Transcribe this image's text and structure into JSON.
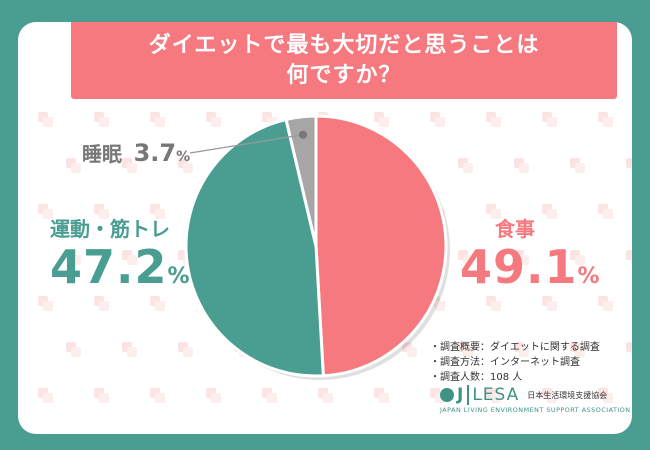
{
  "title": {
    "line1": "ダイエットで最も大切だと思うことは",
    "line2": "何ですか？"
  },
  "colors": {
    "background": "#4a9e91",
    "accent_pink": "#f5797f",
    "accent_teal": "#4a9e91",
    "gray": "#a6a6a6"
  },
  "chart_data": {
    "type": "pie",
    "slices": [
      {
        "label": "食事",
        "value": 49.1,
        "color": "#f5797f"
      },
      {
        "label": "運動・筋トレ",
        "value": 47.2,
        "color": "#4a9e91"
      },
      {
        "label": "睡眠",
        "value": 3.7,
        "color": "#a6a6a6"
      }
    ],
    "labels": {
      "sleep": {
        "name": "睡眠",
        "number": "3.7",
        "unit": "%"
      },
      "exercise": {
        "name": "運動・筋トレ",
        "number": "47.2",
        "unit": "%"
      },
      "food": {
        "name": "食事",
        "number": "49.1",
        "unit": "%"
      }
    }
  },
  "notes": [
    "・調査概要：ダイエットに関する調査",
    "・調査方法：インターネット調査",
    "・調査人数：108 人"
  ],
  "logo": {
    "j": "J",
    "lesa": "LESA",
    "jp": "日本生活環境支援協会",
    "en": "JAPAN LIVING ENVIRONMENT SUPPORT ASSOCIATION"
  }
}
